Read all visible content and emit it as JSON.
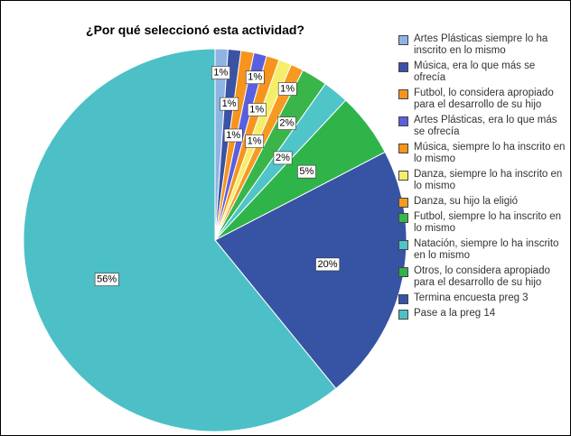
{
  "chart_data": {
    "type": "pie",
    "title": "¿Por qué seleccionó esta actividad?",
    "categories": [
      "Artes Plásticas siempre lo ha inscrito en lo mismo",
      "Música, era lo que más se ofrecía",
      "Futbol, lo considera apropiado para el desarrollo de su hijo",
      "Artes Plásticas, era lo que más se ofrecía",
      "Música, siempre lo ha inscrito en lo mismo",
      "Danza, siempre lo ha inscrito en lo mismo",
      "Danza, su hijo la eligió",
      "Futbol, siempre lo ha inscrito en lo mismo",
      "Natación, siempre lo ha inscrito en lo mismo",
      "Otros, lo considera apropiado para el desarrollo de su hijo",
      "Termina encuesta preg 3",
      "Pase a la preg 14"
    ],
    "values": [
      1,
      1,
      1,
      1,
      1,
      1,
      1,
      2,
      2,
      5,
      20,
      56
    ],
    "value_labels": [
      "1%",
      "1%",
      "1%",
      "1%",
      "1%",
      "1%",
      "1%",
      "2%",
      "2%",
      "5%",
      "20%",
      "56%"
    ],
    "colors": [
      "#8fb4e3",
      "#3a53a4",
      "#f7941d",
      "#5a5fe0",
      "#f7941d",
      "#f5ee6a",
      "#f79a22",
      "#3ab54a",
      "#4fc4c9",
      "#2fb44a",
      "#3753a4",
      "#4cc0c6"
    ],
    "legend": "right"
  }
}
